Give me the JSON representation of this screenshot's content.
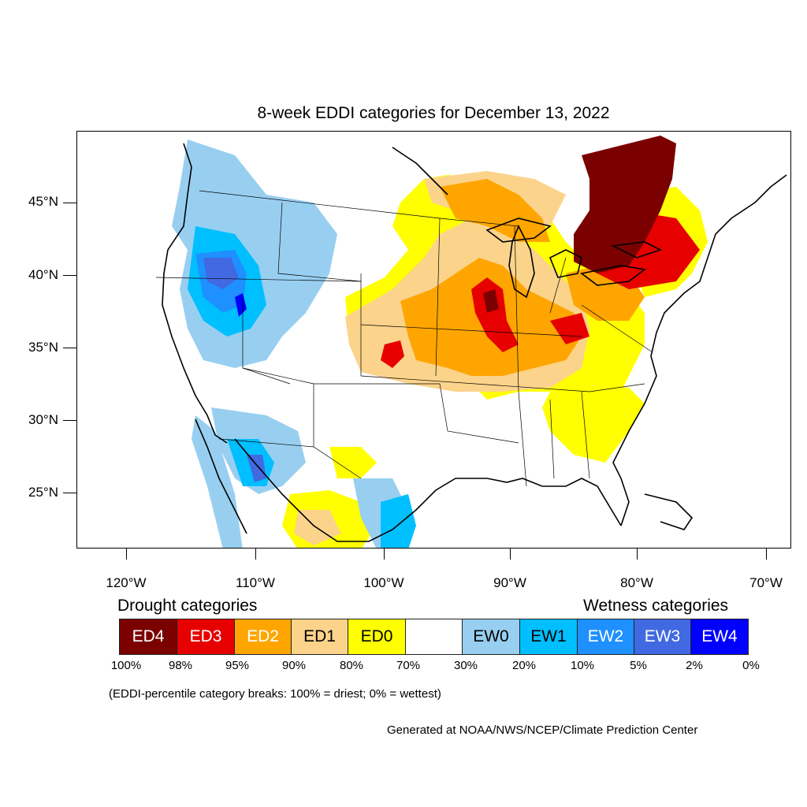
{
  "title": "8-week EDDI categories for December 13, 2022",
  "axes": {
    "lat_labels": [
      "45°N",
      "40°N",
      "35°N",
      "30°N",
      "25°N"
    ],
    "lon_labels": [
      "120°W",
      "110°W",
      "100°W",
      "90°W",
      "80°W",
      "70°W"
    ]
  },
  "legend": {
    "drought_title": "Drought categories",
    "wetness_title": "Wetness categories",
    "categories": [
      {
        "label": "ED4",
        "color": "#7b0000",
        "text_color": "#ffffff"
      },
      {
        "label": "ED3",
        "color": "#e60000",
        "text_color": "#ffffff"
      },
      {
        "label": "ED2",
        "color": "#ffa500",
        "text_color": "#ffffff"
      },
      {
        "label": "ED1",
        "color": "#fcd38b",
        "text_color": "#000000"
      },
      {
        "label": "ED0",
        "color": "#ffff00",
        "text_color": "#000000"
      },
      {
        "label": "",
        "color": "#ffffff",
        "text_color": "#000000"
      },
      {
        "label": "EW0",
        "color": "#98cff1",
        "text_color": "#000000"
      },
      {
        "label": "EW1",
        "color": "#00bfff",
        "text_color": "#000000"
      },
      {
        "label": "EW2",
        "color": "#1e90ff",
        "text_color": "#ffffff"
      },
      {
        "label": "EW3",
        "color": "#4169e1",
        "text_color": "#ffffff"
      },
      {
        "label": "EW4",
        "color": "#0000ff",
        "text_color": "#ffffff"
      }
    ],
    "percent_breaks": [
      "100%",
      "98%",
      "95%",
      "90%",
      "80%",
      "70%",
      "30%",
      "20%",
      "10%",
      "5%",
      "2%",
      "0%"
    ],
    "note": "(EDDI-percentile category breaks: 100% = driest; 0% = wettest)"
  },
  "credit": "Generated at NOAA/NWS/NCEP/Climate Prediction Center"
}
